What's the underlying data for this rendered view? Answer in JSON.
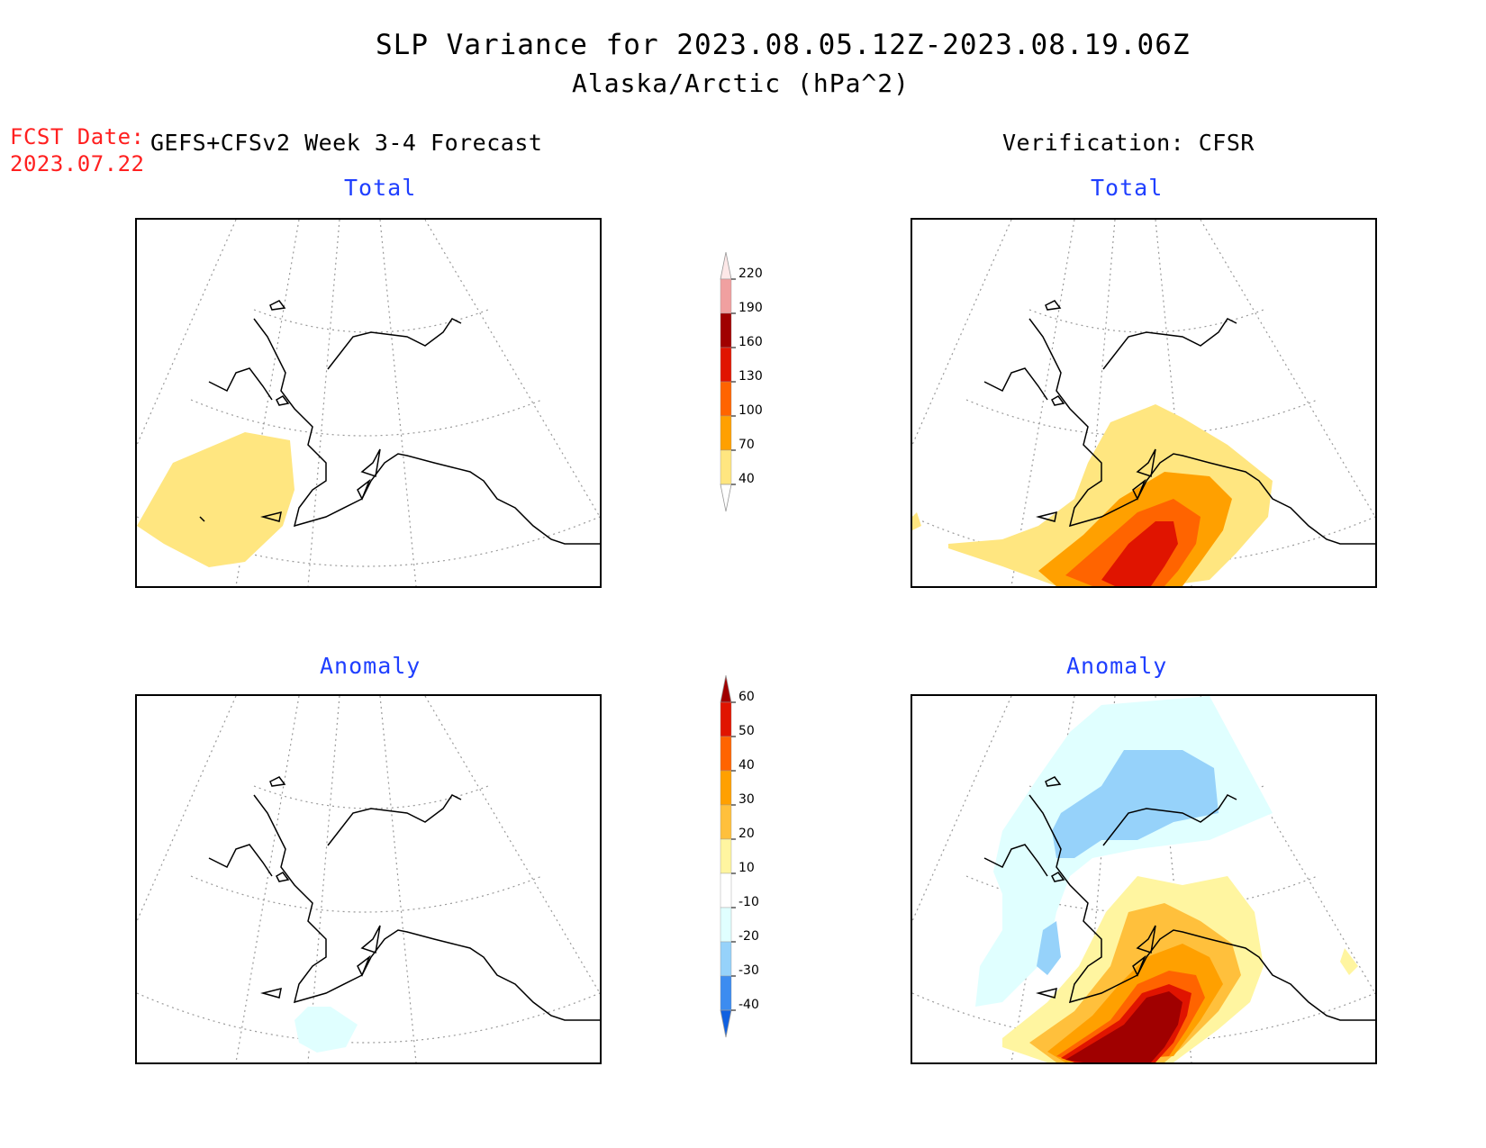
{
  "header": {
    "title": "SLP Variance for 2023.08.05.12Z-2023.08.19.06Z",
    "subtitle": "Alaska/Arctic (hPa^2)"
  },
  "fcst_date": {
    "label": "FCST Date:",
    "value": "2023.07.22"
  },
  "left_column": {
    "heading": "GEFS+CFSv2 Week 3-4 Forecast",
    "top_title": "Total",
    "bottom_title": "Anomaly"
  },
  "right_column": {
    "heading": "Verification: CFSR",
    "top_title": "Total",
    "bottom_title": "Anomaly"
  },
  "colorbars": {
    "total": {
      "labels": [
        "40",
        "70",
        "100",
        "130",
        "160",
        "190",
        "220"
      ],
      "colors": [
        "#ffffff",
        "#ffe680",
        "#ffa000",
        "#ff6400",
        "#e01400",
        "#a00000",
        "#f0a0a0",
        "#fde8e8"
      ]
    },
    "anomaly": {
      "labels": [
        "-40",
        "-30",
        "-20",
        "-10",
        "10",
        "20",
        "30",
        "40",
        "50",
        "60"
      ],
      "colors": [
        "#1060e0",
        "#3c8cf0",
        "#96d2fa",
        "#e0ffff",
        "#ffffff",
        "#fff5a0",
        "#ffc03c",
        "#ffa000",
        "#ff6400",
        "#e01400",
        "#a00000"
      ]
    }
  }
}
